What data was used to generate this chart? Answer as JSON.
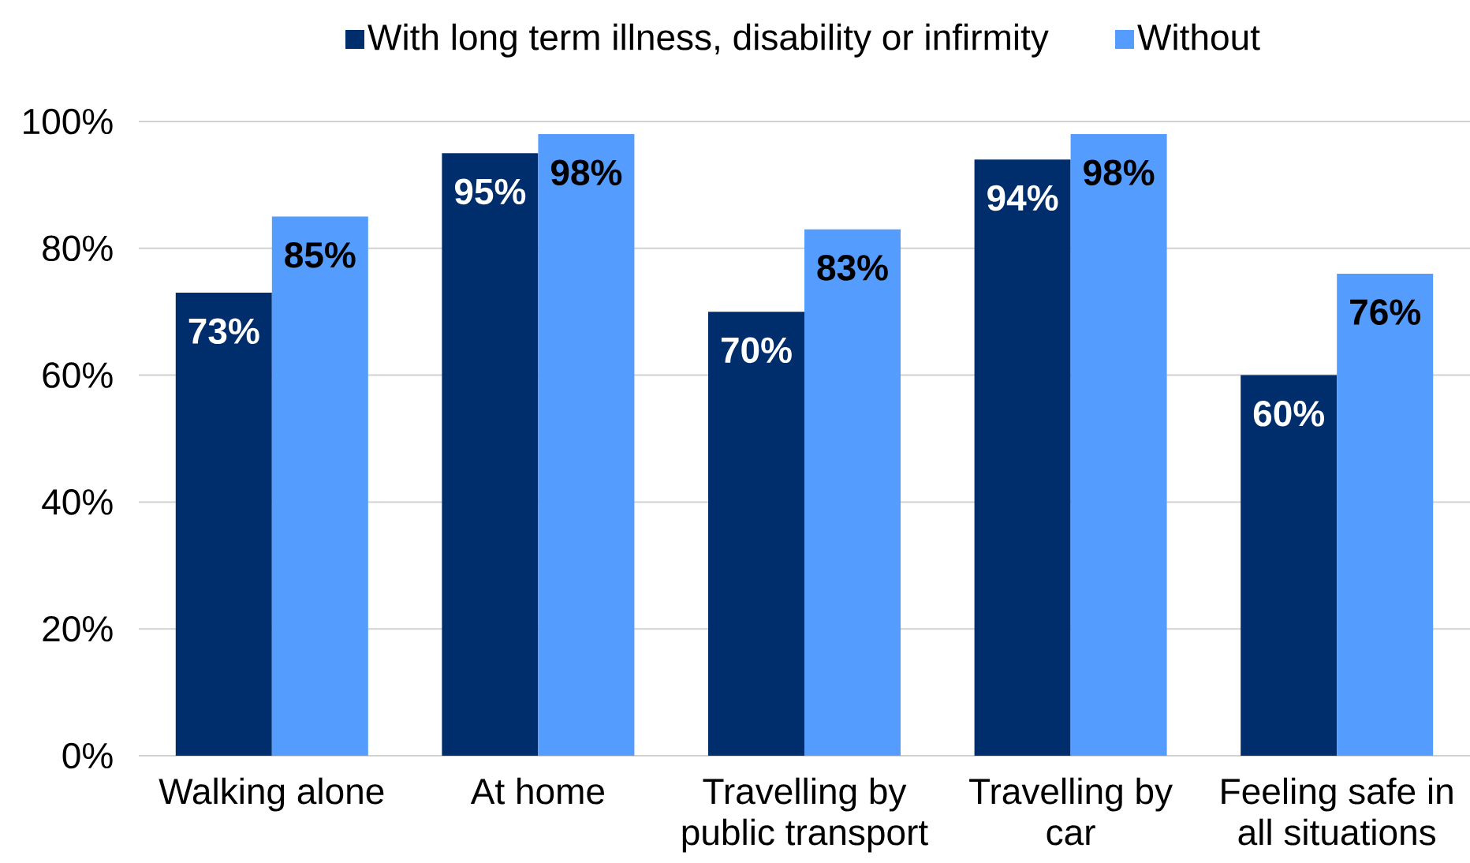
{
  "chart_data": {
    "type": "bar",
    "categories": [
      "Walking alone",
      "At home",
      "Travelling by public transport",
      "Travelling by car",
      "Feeling safe in all situations"
    ],
    "series": [
      {
        "name": "With long term illness, disability or infirmity",
        "color": "#002d6b",
        "values": [
          73,
          95,
          70,
          94,
          60
        ],
        "value_labels": [
          "73%",
          "95%",
          "70%",
          "94%",
          "60%"
        ]
      },
      {
        "name": "Without",
        "color": "#559cff",
        "values": [
          85,
          98,
          83,
          98,
          76
        ],
        "value_labels": [
          "85%",
          "98%",
          "83%",
          "98%",
          "76%"
        ]
      }
    ],
    "ylim": [
      0,
      100
    ],
    "yticks": [
      {
        "value": 0,
        "label": "0%"
      },
      {
        "value": 20,
        "label": "20%"
      },
      {
        "value": 40,
        "label": "40%"
      },
      {
        "value": 60,
        "label": "60%"
      },
      {
        "value": 80,
        "label": "80%"
      },
      {
        "value": 100,
        "label": "100%"
      }
    ],
    "grid": "y",
    "legend": "top"
  }
}
